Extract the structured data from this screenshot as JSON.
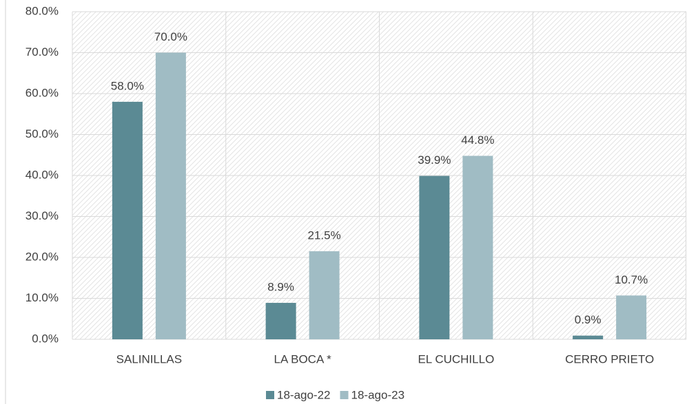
{
  "chart_data": {
    "type": "bar",
    "categories": [
      "SALINILLAS",
      "LA BOCA *",
      "EL CUCHILLO",
      "CERRO PRIETO"
    ],
    "series": [
      {
        "name": "18-ago-22",
        "color": "#5b8a94",
        "values": [
          58.0,
          8.9,
          39.9,
          0.9
        ],
        "value_labels": [
          "58.0%",
          "8.9%",
          "39.9%",
          "0.9%"
        ]
      },
      {
        "name": "18-ago-23",
        "color": "#a0bcc4",
        "values": [
          70.0,
          21.5,
          44.8,
          10.7
        ],
        "value_labels": [
          "70.0%",
          "21.5%",
          "44.8%",
          "10.7%"
        ]
      }
    ],
    "ylim": [
      0,
      80
    ],
    "yticks": [
      {
        "value": 0,
        "label": "0.0%"
      },
      {
        "value": 10,
        "label": "10.0%"
      },
      {
        "value": 20,
        "label": "20.0%"
      },
      {
        "value": 30,
        "label": "30.0%"
      },
      {
        "value": 40,
        "label": "40.0%"
      },
      {
        "value": 50,
        "label": "50.0%"
      },
      {
        "value": 60,
        "label": "60.0%"
      },
      {
        "value": 70,
        "label": "70.0%"
      },
      {
        "value": 80,
        "label": "80.0%"
      }
    ],
    "grid": true,
    "legend": "bottom"
  }
}
